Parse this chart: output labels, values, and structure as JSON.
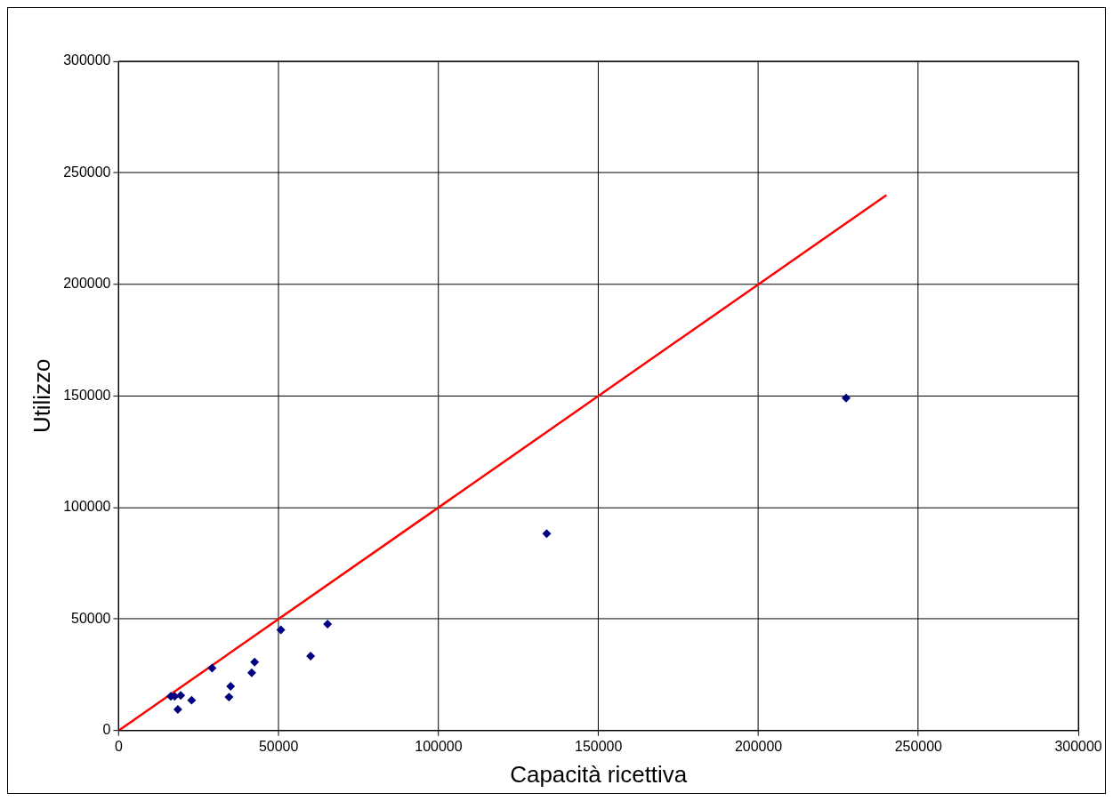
{
  "chart_data": {
    "type": "scatter",
    "xlabel": "Capacità ricettiva",
    "ylabel": "Utilizzo",
    "xlim": [
      0,
      300000
    ],
    "ylim": [
      0,
      300000
    ],
    "xticks": [
      0,
      50000,
      100000,
      150000,
      200000,
      250000,
      300000
    ],
    "yticks": [
      0,
      50000,
      100000,
      150000,
      200000,
      250000,
      300000
    ],
    "grid": true,
    "legend": false,
    "series": [
      {
        "type": "scatter",
        "color": "#000080",
        "marker": "diamond",
        "x": [
          16300,
          17500,
          19400,
          18500,
          22800,
          29200,
          34500,
          35000,
          41600,
          42500,
          50700,
          60000,
          65300,
          133800,
          227400
        ],
        "values": [
          15300,
          15300,
          15700,
          9500,
          13600,
          28000,
          15000,
          19800,
          25900,
          30700,
          45100,
          33400,
          47700,
          88300,
          149000
        ]
      },
      {
        "type": "line",
        "color": "#ff0000",
        "marker": "none",
        "line_style": "solid",
        "x": [
          0,
          240000
        ],
        "values": [
          0,
          240000
        ]
      }
    ]
  }
}
